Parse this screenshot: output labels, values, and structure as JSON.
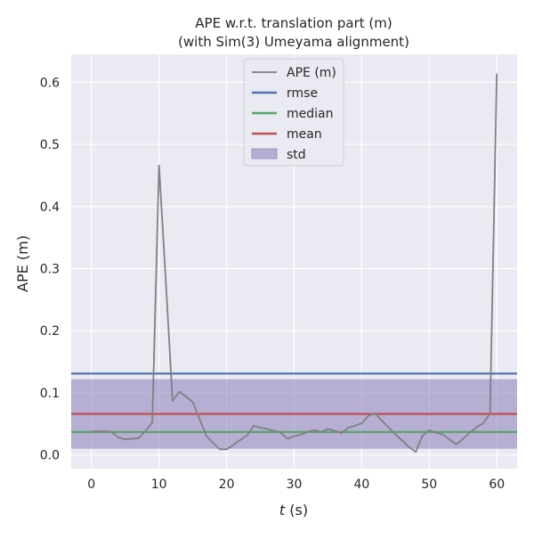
{
  "chart_data": {
    "type": "line",
    "title": "APE w.r.t. translation part (m)",
    "subtitle": "(with Sim(3) Umeyama alignment)",
    "xlabel_italic": "t",
    "xlabel_unit": " (s)",
    "ylabel": "APE (m)",
    "xlim": [
      -3,
      63
    ],
    "ylim": [
      -0.022,
      0.645
    ],
    "xticks": [
      0,
      10,
      20,
      30,
      40,
      50,
      60
    ],
    "yticks": [
      0.0,
      0.1,
      0.2,
      0.3,
      0.4,
      0.5,
      0.6
    ],
    "ytick_labels": [
      "0.0",
      "0.1",
      "0.2",
      "0.3",
      "0.4",
      "0.5",
      "0.6"
    ],
    "grid": true,
    "legend_position": "top-center",
    "series": [
      {
        "name": "APE (m)",
        "kind": "line",
        "color": "#808080",
        "x": [
          0,
          1,
          2,
          3,
          4,
          5,
          6,
          7,
          8,
          9,
          10,
          11,
          12,
          13,
          14,
          15,
          16,
          17,
          18,
          19,
          20,
          21,
          22,
          23,
          24,
          25,
          26,
          27,
          28,
          29,
          30,
          31,
          32,
          33,
          34,
          35,
          36,
          37,
          38,
          39,
          40,
          41,
          42,
          43,
          44,
          45,
          46,
          47,
          48,
          49,
          50,
          51,
          52,
          53,
          54,
          55,
          56,
          57,
          58,
          59,
          60
        ],
        "y": [
          0.038,
          0.038,
          0.038,
          0.037,
          0.028,
          0.025,
          0.026,
          0.027,
          0.039,
          0.052,
          0.466,
          0.28,
          0.087,
          0.102,
          0.094,
          0.085,
          0.058,
          0.031,
          0.019,
          0.009,
          0.009,
          0.016,
          0.024,
          0.031,
          0.047,
          0.044,
          0.042,
          0.039,
          0.036,
          0.026,
          0.03,
          0.033,
          0.037,
          0.04,
          0.037,
          0.042,
          0.039,
          0.035,
          0.044,
          0.047,
          0.051,
          0.063,
          0.067,
          0.055,
          0.044,
          0.033,
          0.023,
          0.013,
          0.005,
          0.031,
          0.04,
          0.036,
          0.033,
          0.025,
          0.017,
          0.026,
          0.036,
          0.045,
          0.051,
          0.067,
          0.614
        ]
      },
      {
        "name": "rmse",
        "kind": "hline",
        "color": "#4c72b0",
        "value": 0.131
      },
      {
        "name": "median",
        "kind": "hline",
        "color": "#55a868",
        "value": 0.037
      },
      {
        "name": "mean",
        "kind": "hline",
        "color": "#c44e52",
        "value": 0.066
      },
      {
        "name": "std",
        "kind": "band",
        "color": "#8172b3",
        "range": [
          0.01,
          0.122
        ]
      }
    ]
  }
}
